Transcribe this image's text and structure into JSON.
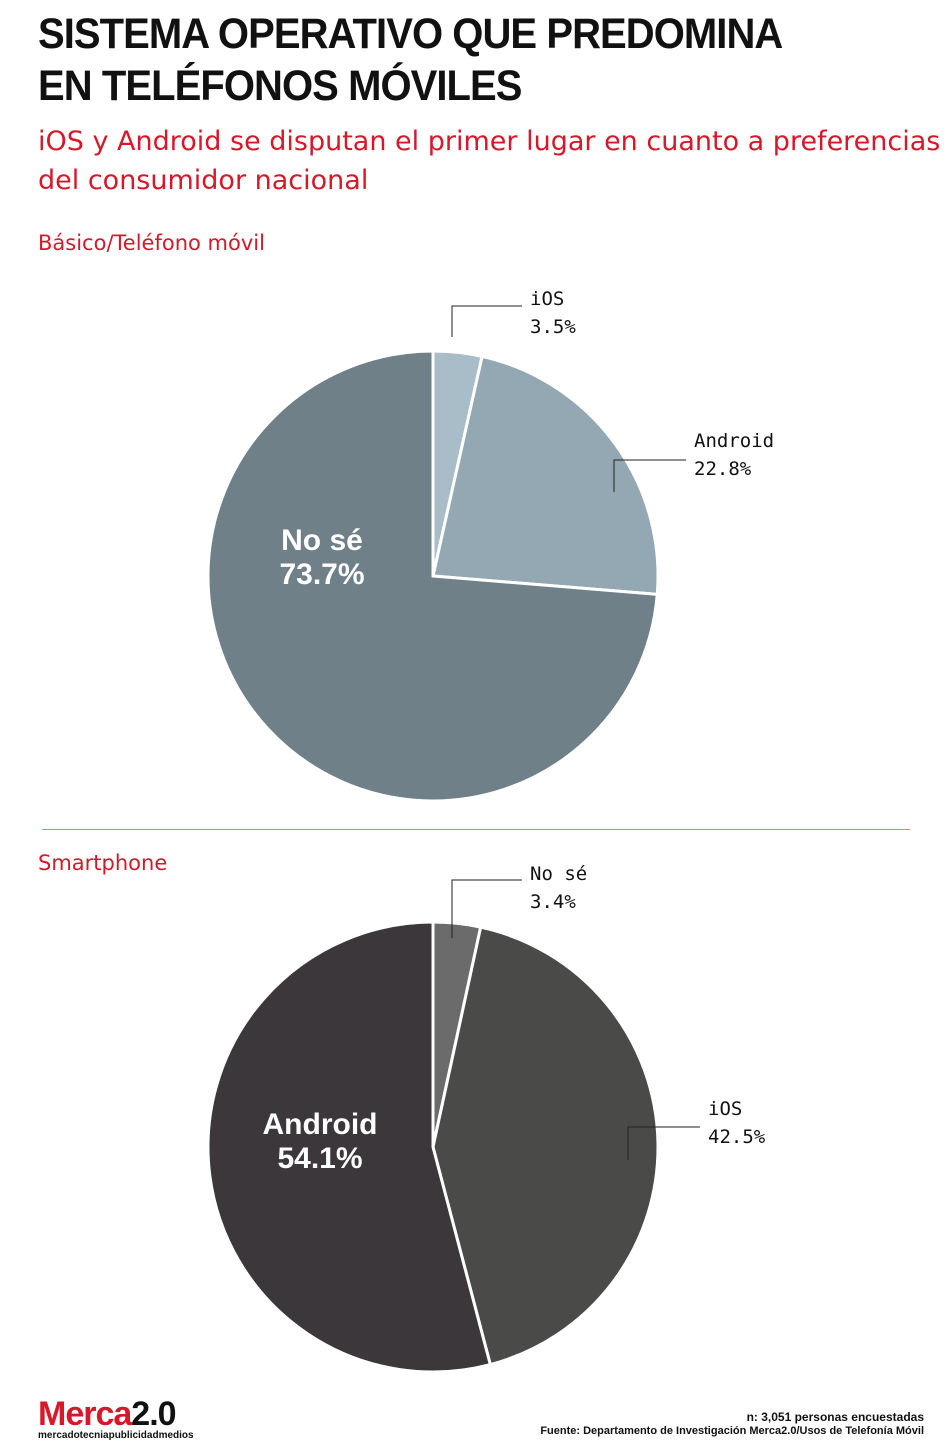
{
  "title_line1": "SISTEMA OPERATIVO QUE PREDOMINA",
  "title_line2": "EN TELÉFONOS MÓVILES",
  "subtitle": "iOS y Android se disputan el primer lugar en cuanto a preferencias del consumidor nacional",
  "chart_data": [
    {
      "type": "pie",
      "title": "Básico/Teléfono móvil",
      "slices": [
        {
          "label": "iOS",
          "value": 3.5,
          "value_label": "3.5%",
          "color": "#a9bdc8"
        },
        {
          "label": "Android",
          "value": 22.8,
          "value_label": "22.8%",
          "color": "#93a8b3"
        },
        {
          "label": "No sé",
          "value": 73.7,
          "value_label": "73.7%",
          "color": "#6f8088"
        }
      ]
    },
    {
      "type": "pie",
      "title": "Smartphone",
      "slices": [
        {
          "label": "No sé",
          "value": 3.4,
          "value_label": "3.4%",
          "color": "#6b6b6b"
        },
        {
          "label": "iOS",
          "value": 42.5,
          "value_label": "42.5%",
          "color": "#4a4a48"
        },
        {
          "label": "Android",
          "value": 54.1,
          "value_label": "54.1%",
          "color": "#3c373a"
        }
      ]
    }
  ],
  "footer": {
    "sample": "n: 3,051 personas encuestadas",
    "source": "Fuente: Departamento de Investigación Merca2.0/Usos de Telefonía Móvil"
  },
  "logo": {
    "brand": "Merca",
    "version": "2.0",
    "tagline": "mercadotecniapublicidadmedios"
  }
}
